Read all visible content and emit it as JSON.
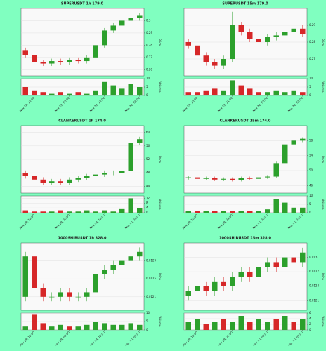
{
  "chart_data": [
    {
      "type": "candlestick",
      "title": "SUPERUSDT 1h 179.0",
      "ylabel": "Price",
      "volume_label": "Volume",
      "categories": [
        null,
        "Nov 28, 12:00",
        null,
        null,
        null,
        "Nov 29, 00:00",
        null,
        null,
        null,
        "Nov 29, 12:00",
        null,
        null,
        null,
        "Nov 30, 00:00"
      ],
      "open": [
        0.276,
        0.272,
        0.266,
        0.265,
        0.267,
        0.266,
        0.268,
        0.267,
        0.27,
        0.28,
        0.292,
        0.296,
        0.3,
        0.302
      ],
      "high": [
        0.278,
        0.274,
        0.268,
        0.269,
        0.269,
        0.27,
        0.27,
        0.272,
        0.282,
        0.294,
        0.298,
        0.302,
        0.304,
        0.306
      ],
      "low": [
        0.27,
        0.264,
        0.263,
        0.263,
        0.264,
        0.264,
        0.265,
        0.265,
        0.268,
        0.278,
        0.29,
        0.294,
        0.298,
        0.3
      ],
      "close": [
        0.272,
        0.266,
        0.265,
        0.267,
        0.266,
        0.268,
        0.267,
        0.27,
        0.28,
        0.292,
        0.296,
        0.3,
        0.302,
        0.304
      ],
      "volume": [
        5,
        3,
        2,
        1,
        2,
        1,
        2,
        1,
        3,
        8,
        6,
        4,
        7,
        5
      ],
      "ylim": [
        0.255,
        0.31
      ],
      "yticks": [
        0.26,
        0.27,
        0.28,
        0.29,
        0.3
      ],
      "volume_ylim": [
        0,
        10
      ],
      "volume_yticks": [
        0,
        5,
        10
      ],
      "up_color": "#2ca02c",
      "down_color": "#d62728",
      "grid": true
    },
    {
      "type": "candlestick",
      "title": "SUPERUSDT 15m 179.0",
      "ylabel": "Price",
      "volume_label": "Volume",
      "categories": [
        null,
        "Nov 29, 18:00",
        null,
        null,
        null,
        "Nov 29, 21:00",
        null,
        null,
        null,
        "Nov 30, 00:00",
        null,
        null,
        null,
        "Nov 30, 03:00"
      ],
      "open": [
        0.28,
        0.278,
        0.272,
        0.268,
        0.266,
        0.27,
        0.29,
        0.286,
        0.282,
        0.28,
        0.283,
        0.284,
        0.286,
        0.288
      ],
      "high": [
        0.282,
        0.28,
        0.274,
        0.27,
        0.272,
        0.298,
        0.292,
        0.288,
        0.284,
        0.285,
        0.286,
        0.288,
        0.29,
        0.29
      ],
      "low": [
        0.276,
        0.27,
        0.266,
        0.264,
        0.264,
        0.268,
        0.284,
        0.28,
        0.278,
        0.278,
        0.281,
        0.282,
        0.284,
        0.283
      ],
      "close": [
        0.278,
        0.272,
        0.268,
        0.266,
        0.27,
        0.29,
        0.286,
        0.282,
        0.28,
        0.283,
        0.284,
        0.286,
        0.288,
        0.285
      ],
      "volume": [
        2,
        2,
        3,
        4,
        3,
        9,
        6,
        4,
        2,
        2,
        3,
        2,
        3,
        2
      ],
      "ylim": [
        0.26,
        0.3
      ],
      "yticks": [
        0.27,
        0.28,
        0.29
      ],
      "volume_ylim": [
        0,
        10
      ],
      "volume_yticks": [
        0,
        5,
        10
      ],
      "up_color": "#2ca02c",
      "down_color": "#d62728",
      "grid": true
    },
    {
      "type": "candlestick",
      "title": "CLANKERUSDT 1h 174.0",
      "ylabel": "Price",
      "volume_label": "Volume",
      "categories": [
        null,
        "Nov 28, 12:00",
        null,
        null,
        null,
        "Nov 29, 00:00",
        null,
        null,
        null,
        "Nov 29, 12:00",
        null,
        null,
        null,
        "Nov 30, 00:00"
      ],
      "open": [
        48,
        47,
        46,
        45,
        45.5,
        45,
        46,
        46.5,
        47,
        47.5,
        48,
        48,
        48.5,
        57
      ],
      "high": [
        48.7,
        47.7,
        46.7,
        46.2,
        46.2,
        46.7,
        47.2,
        47.7,
        48.2,
        48.7,
        48.7,
        49.2,
        60,
        58.7
      ],
      "low": [
        46.3,
        45.3,
        44.3,
        44.3,
        44.3,
        44.3,
        45.3,
        45.8,
        46.3,
        46.8,
        47.3,
        47.3,
        47.8,
        56.3
      ],
      "close": [
        47,
        46,
        45,
        45.5,
        45,
        46,
        46.5,
        47,
        47.5,
        48,
        48,
        48.5,
        57,
        58
      ],
      "volume": [
        2,
        1,
        1,
        1,
        2,
        1,
        1,
        2,
        1,
        2,
        1,
        3,
        12,
        4
      ],
      "ylim": [
        42,
        62
      ],
      "yticks": [
        44,
        48,
        52,
        56,
        60
      ],
      "volume_ylim": [
        0,
        14
      ],
      "volume_yticks": [
        0,
        4,
        8,
        12
      ],
      "up_color": "#2ca02c",
      "down_color": "#d62728",
      "grid": true
    },
    {
      "type": "candlestick",
      "title": "CLANKERUSDT 15m 174.0",
      "ylabel": "Price",
      "volume_label": "Volume",
      "categories": [
        null,
        "Nov 29, 18:00",
        null,
        null,
        null,
        "Nov 29, 21:00",
        null,
        null,
        null,
        "Nov 30, 00:00",
        null,
        null,
        null,
        "Nov 30, 03:00"
      ],
      "open": [
        48,
        48.2,
        47.8,
        48,
        47.6,
        47.8,
        47.5,
        48,
        47.8,
        48.2,
        48.4,
        52,
        57,
        58
      ],
      "high": [
        48.6,
        48.6,
        48.4,
        48.4,
        48.2,
        48.2,
        48.4,
        48.4,
        48.6,
        48.8,
        52.4,
        60,
        59.5,
        58.9
      ],
      "low": [
        47.6,
        47.4,
        47.4,
        47.2,
        47.2,
        47.1,
        47.1,
        47.4,
        47.4,
        47.8,
        48,
        51.6,
        56.6,
        57.6
      ],
      "close": [
        48.2,
        47.8,
        48,
        47.6,
        47.8,
        47.5,
        48,
        47.8,
        48.2,
        48.4,
        52,
        57,
        58,
        58.5
      ],
      "volume": [
        1,
        1,
        1,
        1,
        1,
        1,
        1,
        1,
        1,
        2,
        8,
        6,
        3,
        3
      ],
      "ylim": [
        44,
        62
      ],
      "yticks": [
        46,
        50,
        54,
        58
      ],
      "volume_ylim": [
        0,
        10
      ],
      "volume_yticks": [
        0,
        5,
        10
      ],
      "up_color": "#2ca02c",
      "down_color": "#d62728",
      "grid": true
    },
    {
      "type": "candlestick",
      "title": "1000SHIBUSDT 1h 328.0",
      "ylabel": "Price",
      "volume_label": "Volume",
      "categories": [
        null,
        "Nov 28, 12:00",
        null,
        null,
        null,
        "Nov 29, 00:00",
        null,
        null,
        null,
        "Nov 29, 12:00",
        null,
        null,
        null,
        "Nov 30, 00:00"
      ],
      "open": [
        0.0121,
        0.013,
        0.0123,
        0.0121,
        0.0121,
        0.0122,
        0.0121,
        0.0121,
        0.0122,
        0.0126,
        0.0127,
        0.0128,
        0.0129,
        0.013
      ],
      "high": [
        0.0131,
        0.0131,
        0.0124,
        0.0122,
        0.0123,
        0.0123,
        0.0122,
        0.0123,
        0.0127,
        0.0128,
        0.0129,
        0.013,
        0.0131,
        0.0132
      ],
      "low": [
        0.012,
        0.0122,
        0.012,
        0.012,
        0.012,
        0.012,
        0.012,
        0.012,
        0.0121,
        0.0125,
        0.0126,
        0.0127,
        0.0128,
        0.0129
      ],
      "close": [
        0.013,
        0.0123,
        0.0121,
        0.0121,
        0.0122,
        0.0121,
        0.0121,
        0.0122,
        0.0126,
        0.0127,
        0.0128,
        0.0129,
        0.013,
        0.0131
      ],
      "volume": [
        2,
        9,
        4,
        2,
        3,
        2,
        2,
        3,
        5,
        4,
        3,
        3,
        4,
        3
      ],
      "ylim": [
        0.0118,
        0.0133
      ],
      "yticks": [
        0.0121,
        0.0125,
        0.0129
      ],
      "volume_ylim": [
        0,
        10
      ],
      "volume_yticks": [
        0,
        5,
        10
      ],
      "up_color": "#2ca02c",
      "down_color": "#d62728",
      "grid": true
    },
    {
      "type": "candlestick",
      "title": "1000SHIBUSDT 15m 328.0",
      "ylabel": "Price",
      "volume_label": "Volume",
      "categories": [
        null,
        "Nov 29, 18:00",
        null,
        null,
        null,
        "Nov 29, 21:00",
        null,
        null,
        null,
        "Nov 30, 00:00",
        null,
        null,
        null,
        "Nov 30, 03:00"
      ],
      "open": [
        0.0122,
        0.0123,
        0.0124,
        0.0123,
        0.0125,
        0.0124,
        0.0126,
        0.0127,
        0.0126,
        0.0128,
        0.0129,
        0.0128,
        0.013,
        0.0129
      ],
      "high": [
        0.0124,
        0.0125,
        0.0125,
        0.0126,
        0.0126,
        0.0127,
        0.0128,
        0.0128,
        0.0129,
        0.013,
        0.013,
        0.0131,
        0.0131,
        0.0132
      ],
      "low": [
        0.0121,
        0.0122,
        0.0122,
        0.0122,
        0.0123,
        0.0123,
        0.0125,
        0.0125,
        0.0125,
        0.0127,
        0.0127,
        0.0127,
        0.0128,
        0.0128
      ],
      "close": [
        0.0123,
        0.0124,
        0.0123,
        0.0125,
        0.0124,
        0.0126,
        0.0127,
        0.0126,
        0.0128,
        0.0129,
        0.0128,
        0.013,
        0.0129,
        0.0131
      ],
      "volume": [
        3,
        4,
        2,
        3,
        4,
        3,
        5,
        3,
        4,
        3,
        4,
        5,
        3,
        4
      ],
      "ylim": [
        0.0119,
        0.0133
      ],
      "yticks": [
        0.0121,
        0.0124,
        0.0127,
        0.013
      ],
      "volume_ylim": [
        0,
        6
      ],
      "volume_yticks": [
        0,
        2,
        4,
        6
      ],
      "up_color": "#2ca02c",
      "down_color": "#d62728",
      "grid": true
    }
  ]
}
